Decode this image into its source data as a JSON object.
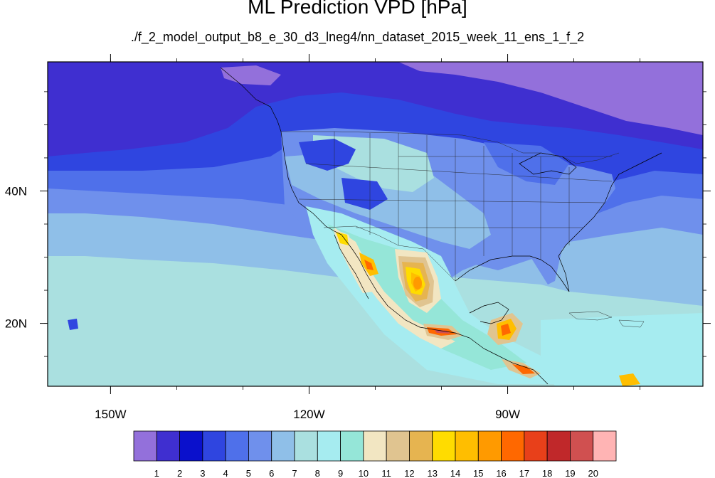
{
  "chart_data": {
    "type": "heatmap",
    "title": "ML Prediction VPD [hPa]",
    "subtitle": "./f_2_model_output_b8_e_30_d3_lneg4/nn_dataset_2015_week_11_ens_1_f_2",
    "x_ticks": [
      {
        "value": -150,
        "label": "150W"
      },
      {
        "value": -120,
        "label": "120W"
      },
      {
        "value": -90,
        "label": "90W"
      }
    ],
    "y_ticks": [
      {
        "value": 40,
        "label": "40N"
      },
      {
        "value": 20,
        "label": "20N"
      }
    ],
    "lon_range": [
      -159.5,
      -60.5
    ],
    "lat_range": [
      10.5,
      59.5
    ],
    "colorbar": {
      "levels": [
        1,
        2,
        3,
        4,
        5,
        6,
        7,
        8,
        9,
        10,
        11,
        12,
        13,
        14,
        15,
        16,
        17,
        18,
        19,
        20
      ],
      "colors": [
        "#9370db",
        "#3f2fd0",
        "#0a10cc",
        "#2f45e0",
        "#4f70ea",
        "#6f90ec",
        "#8fbfe8",
        "#aae0e0",
        "#a6ecf0",
        "#95e6d8",
        "#f2e6c2",
        "#e0c490",
        "#e6b450",
        "#ffdc00",
        "#ffbe00",
        "#ff9a00",
        "#ff6800",
        "#e8401a",
        "#c0282a",
        "#d05050",
        "#ffb4b4"
      ]
    },
    "field_summary": {
      "northern_ocean": 1,
      "mid_pacific_band": 3,
      "southern_pacific": 7,
      "continental_us": 5,
      "mexico_plateau_peak": 17,
      "central_america_peak": 18
    }
  }
}
